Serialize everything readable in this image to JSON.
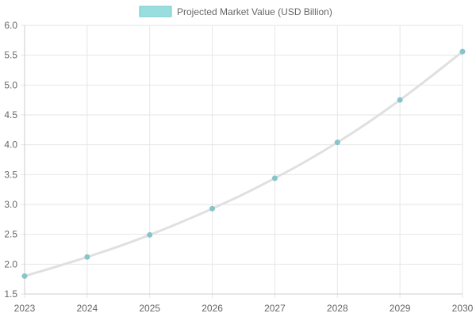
{
  "chart_data": {
    "type": "line",
    "title": "",
    "xlabel": "",
    "ylabel": "",
    "x": [
      "2023",
      "2024",
      "2025",
      "2026",
      "2027",
      "2028",
      "2029",
      "2030"
    ],
    "series": [
      {
        "name": "Projected Market Value (USD Billion)",
        "values": [
          1.8,
          2.12,
          2.49,
          2.93,
          3.44,
          4.04,
          4.75,
          5.56
        ]
      }
    ],
    "ylim": [
      1.5,
      6.0
    ],
    "y_ticks": [
      "1.5",
      "2.0",
      "2.5",
      "3.0",
      "3.5",
      "4.0",
      "4.5",
      "5.0",
      "5.5",
      "6.0"
    ],
    "grid": true,
    "legend_position": "top-center",
    "colors": {
      "line": "#e0e0e0",
      "point_fill": "#86c5c9",
      "legend_fill": "#99dede",
      "legend_border": "#75c6c6",
      "grid": "#e6e6e6",
      "tick_text": "#666666"
    }
  }
}
